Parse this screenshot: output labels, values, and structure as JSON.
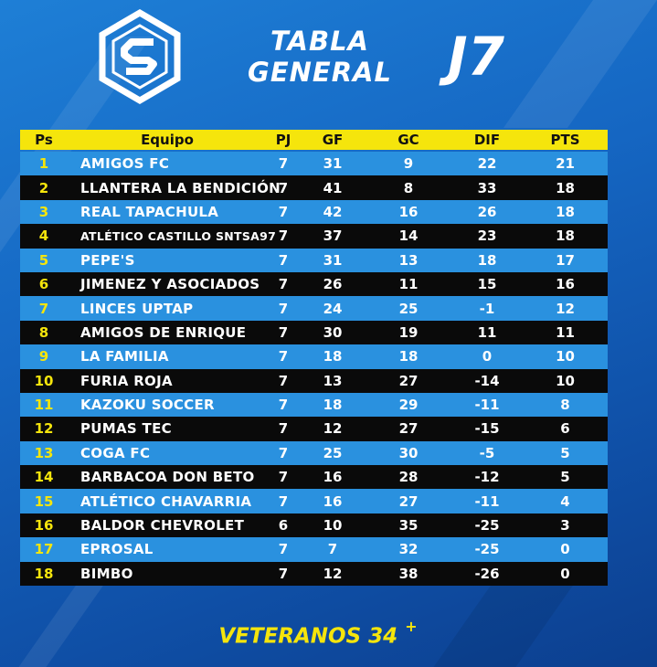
{
  "header": {
    "title_line1": "TABLA",
    "title_line2": "GENERAL",
    "matchday": "J7",
    "logo_icon": "league-s-hexagon-logo"
  },
  "colors": {
    "background": "#1566c2",
    "header_row": "#f5e50c",
    "light_row": "#2a91df",
    "dark_row": "#0a0a0a",
    "position_text": "#f5e50c"
  },
  "table": {
    "columns": [
      "Ps",
      "Equipo",
      "PJ",
      "GF",
      "GC",
      "DIF",
      "PTS"
    ],
    "rows": [
      {
        "ps": "1",
        "team": "AMIGOS FC",
        "pj": "7",
        "gf": "31",
        "gc": "9",
        "dif": "22",
        "pts": "21"
      },
      {
        "ps": "2",
        "team": "LLANTERA LA BENDICIÓN",
        "pj": "7",
        "gf": "41",
        "gc": "8",
        "dif": "33",
        "pts": "18"
      },
      {
        "ps": "3",
        "team": "REAL TAPACHULA",
        "pj": "7",
        "gf": "42",
        "gc": "16",
        "dif": "26",
        "pts": "18"
      },
      {
        "ps": "4",
        "team": "ATLÉTICO CASTILLO SNTSA97",
        "pj": "7",
        "gf": "37",
        "gc": "14",
        "dif": "23",
        "pts": "18"
      },
      {
        "ps": "5",
        "team": "PEPE'S",
        "pj": "7",
        "gf": "31",
        "gc": "13",
        "dif": "18",
        "pts": "17"
      },
      {
        "ps": "6",
        "team": "JIMENEZ Y ASOCIADOS",
        "pj": "7",
        "gf": "26",
        "gc": "11",
        "dif": "15",
        "pts": "16"
      },
      {
        "ps": "7",
        "team": "LINCES UPTAP",
        "pj": "7",
        "gf": "24",
        "gc": "25",
        "dif": "-1",
        "pts": "12"
      },
      {
        "ps": "8",
        "team": "AMIGOS DE ENRIQUE",
        "pj": "7",
        "gf": "30",
        "gc": "19",
        "dif": "11",
        "pts": "11"
      },
      {
        "ps": "9",
        "team": "LA FAMILIA",
        "pj": "7",
        "gf": "18",
        "gc": "18",
        "dif": "0",
        "pts": "10"
      },
      {
        "ps": "10",
        "team": "FURIA ROJA",
        "pj": "7",
        "gf": "13",
        "gc": "27",
        "dif": "-14",
        "pts": "10"
      },
      {
        "ps": "11",
        "team": "KAZOKU SOCCER",
        "pj": "7",
        "gf": "18",
        "gc": "29",
        "dif": "-11",
        "pts": "8"
      },
      {
        "ps": "12",
        "team": "PUMAS TEC",
        "pj": "7",
        "gf": "12",
        "gc": "27",
        "dif": "-15",
        "pts": "6"
      },
      {
        "ps": "13",
        "team": "COGA FC",
        "pj": "7",
        "gf": "25",
        "gc": "30",
        "dif": "-5",
        "pts": "5"
      },
      {
        "ps": "14",
        "team": "BARBACOA DON BETO",
        "pj": "7",
        "gf": "16",
        "gc": "28",
        "dif": "-12",
        "pts": "5"
      },
      {
        "ps": "15",
        "team": "ATLÉTICO CHAVARRIA",
        "pj": "7",
        "gf": "16",
        "gc": "27",
        "dif": "-11",
        "pts": "4"
      },
      {
        "ps": "16",
        "team": "BALDOR CHEVROLET",
        "pj": "6",
        "gf": "10",
        "gc": "35",
        "dif": "-25",
        "pts": "3"
      },
      {
        "ps": "17",
        "team": "EPROSAL",
        "pj": "7",
        "gf": "7",
        "gc": "32",
        "dif": "-25",
        "pts": "0"
      },
      {
        "ps": "18",
        "team": "BIMBO",
        "pj": "7",
        "gf": "12",
        "gc": "38",
        "dif": "-26",
        "pts": "0"
      }
    ]
  },
  "footer": {
    "label": "VETERANOS 34",
    "sup": "+"
  }
}
